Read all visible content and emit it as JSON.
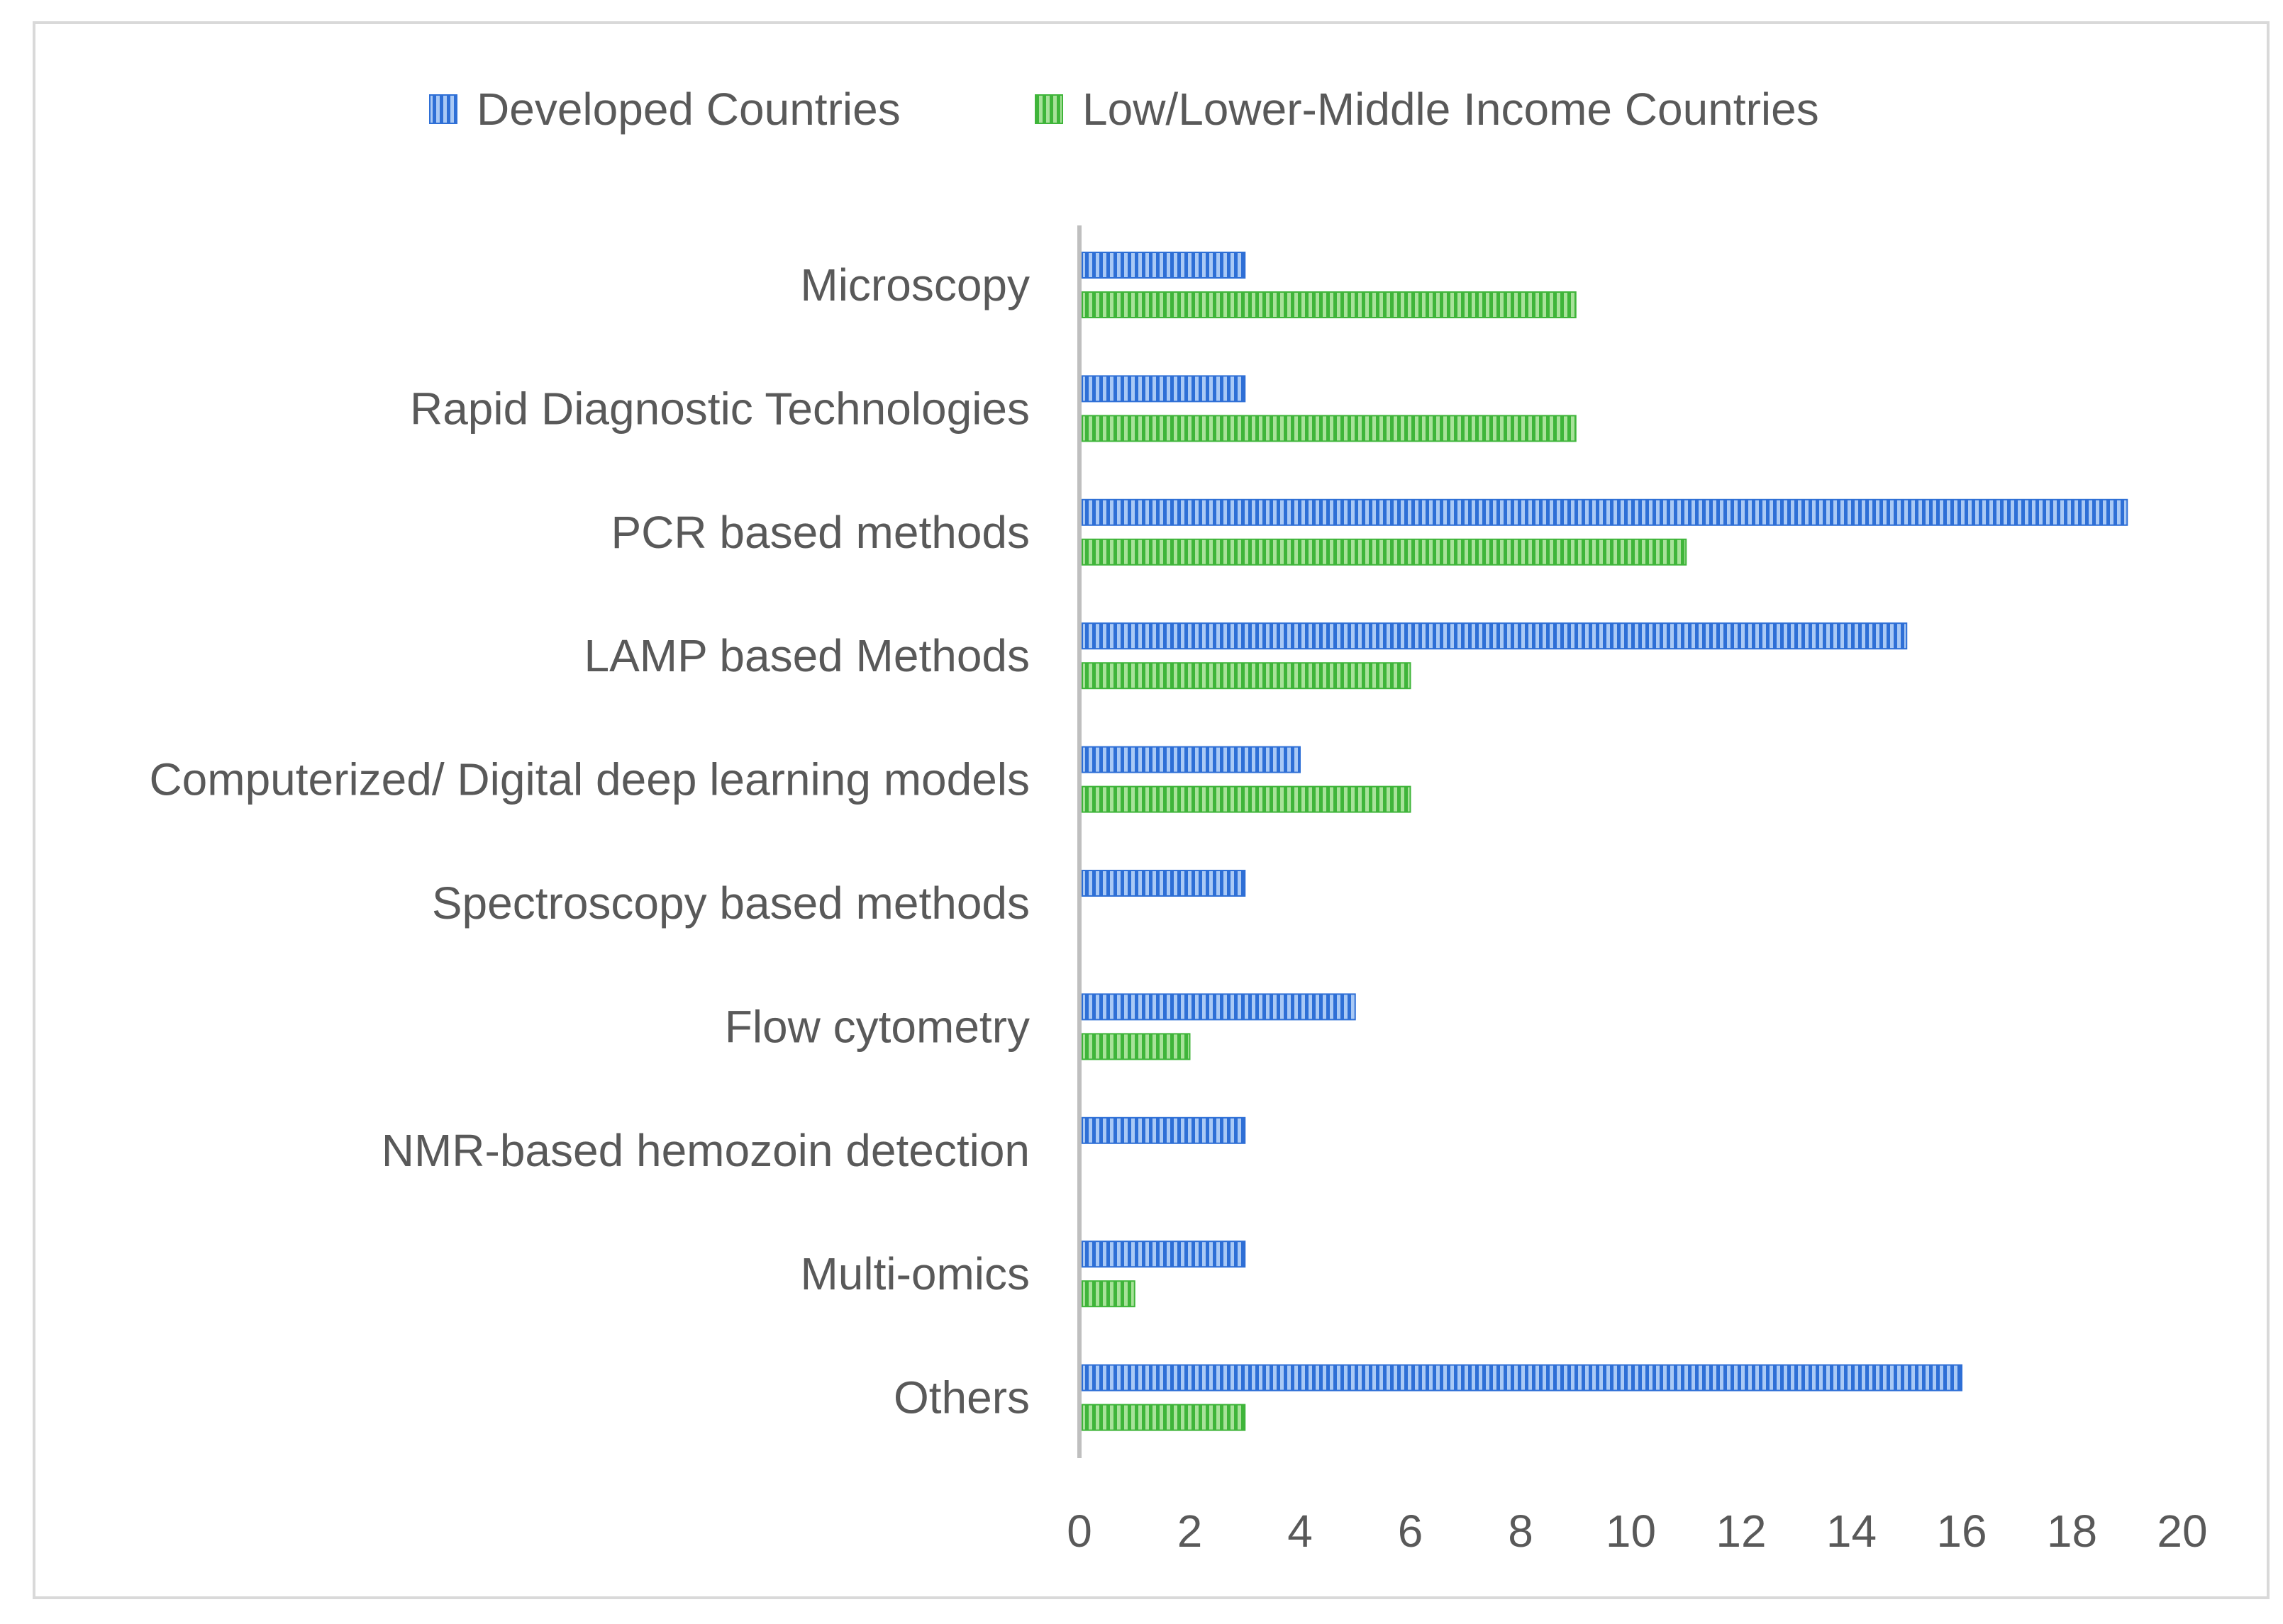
{
  "chart_data": {
    "type": "bar",
    "orientation": "horizontal",
    "categories": [
      "Microscopy",
      "Rapid Diagnostic Technologies",
      "PCR based methods",
      "LAMP based Methods",
      "Computerized/ Digital deep learning models",
      "Spectroscopy based methods",
      "Flow cytometry",
      "NMR-based hemozoin detection",
      "Multi-omics",
      "Others"
    ],
    "series": [
      {
        "name": "Developed Countries",
        "values": [
          3,
          3,
          19,
          15,
          4,
          3,
          5,
          3,
          3,
          16
        ]
      },
      {
        "name": "Low/Lower-Middle Income Countries",
        "values": [
          9,
          9,
          11,
          6,
          6,
          0,
          2,
          0,
          1,
          3
        ]
      }
    ],
    "xlim": [
      0,
      20
    ],
    "xticks": [
      "0",
      "2",
      "4",
      "6",
      "8",
      "10",
      "12",
      "14",
      "16",
      "18",
      "20"
    ],
    "title": "",
    "xlabel": "",
    "ylabel": "",
    "grid": false,
    "legend_position": "top",
    "colors": {
      "series": [
        "#2e6fd6",
        "#3fb53a"
      ],
      "series_light": [
        "#a9c9f5",
        "#a8e29a"
      ],
      "axis": "#bfbfbf",
      "text": "#595959",
      "frame": "#d9d9d9"
    }
  }
}
